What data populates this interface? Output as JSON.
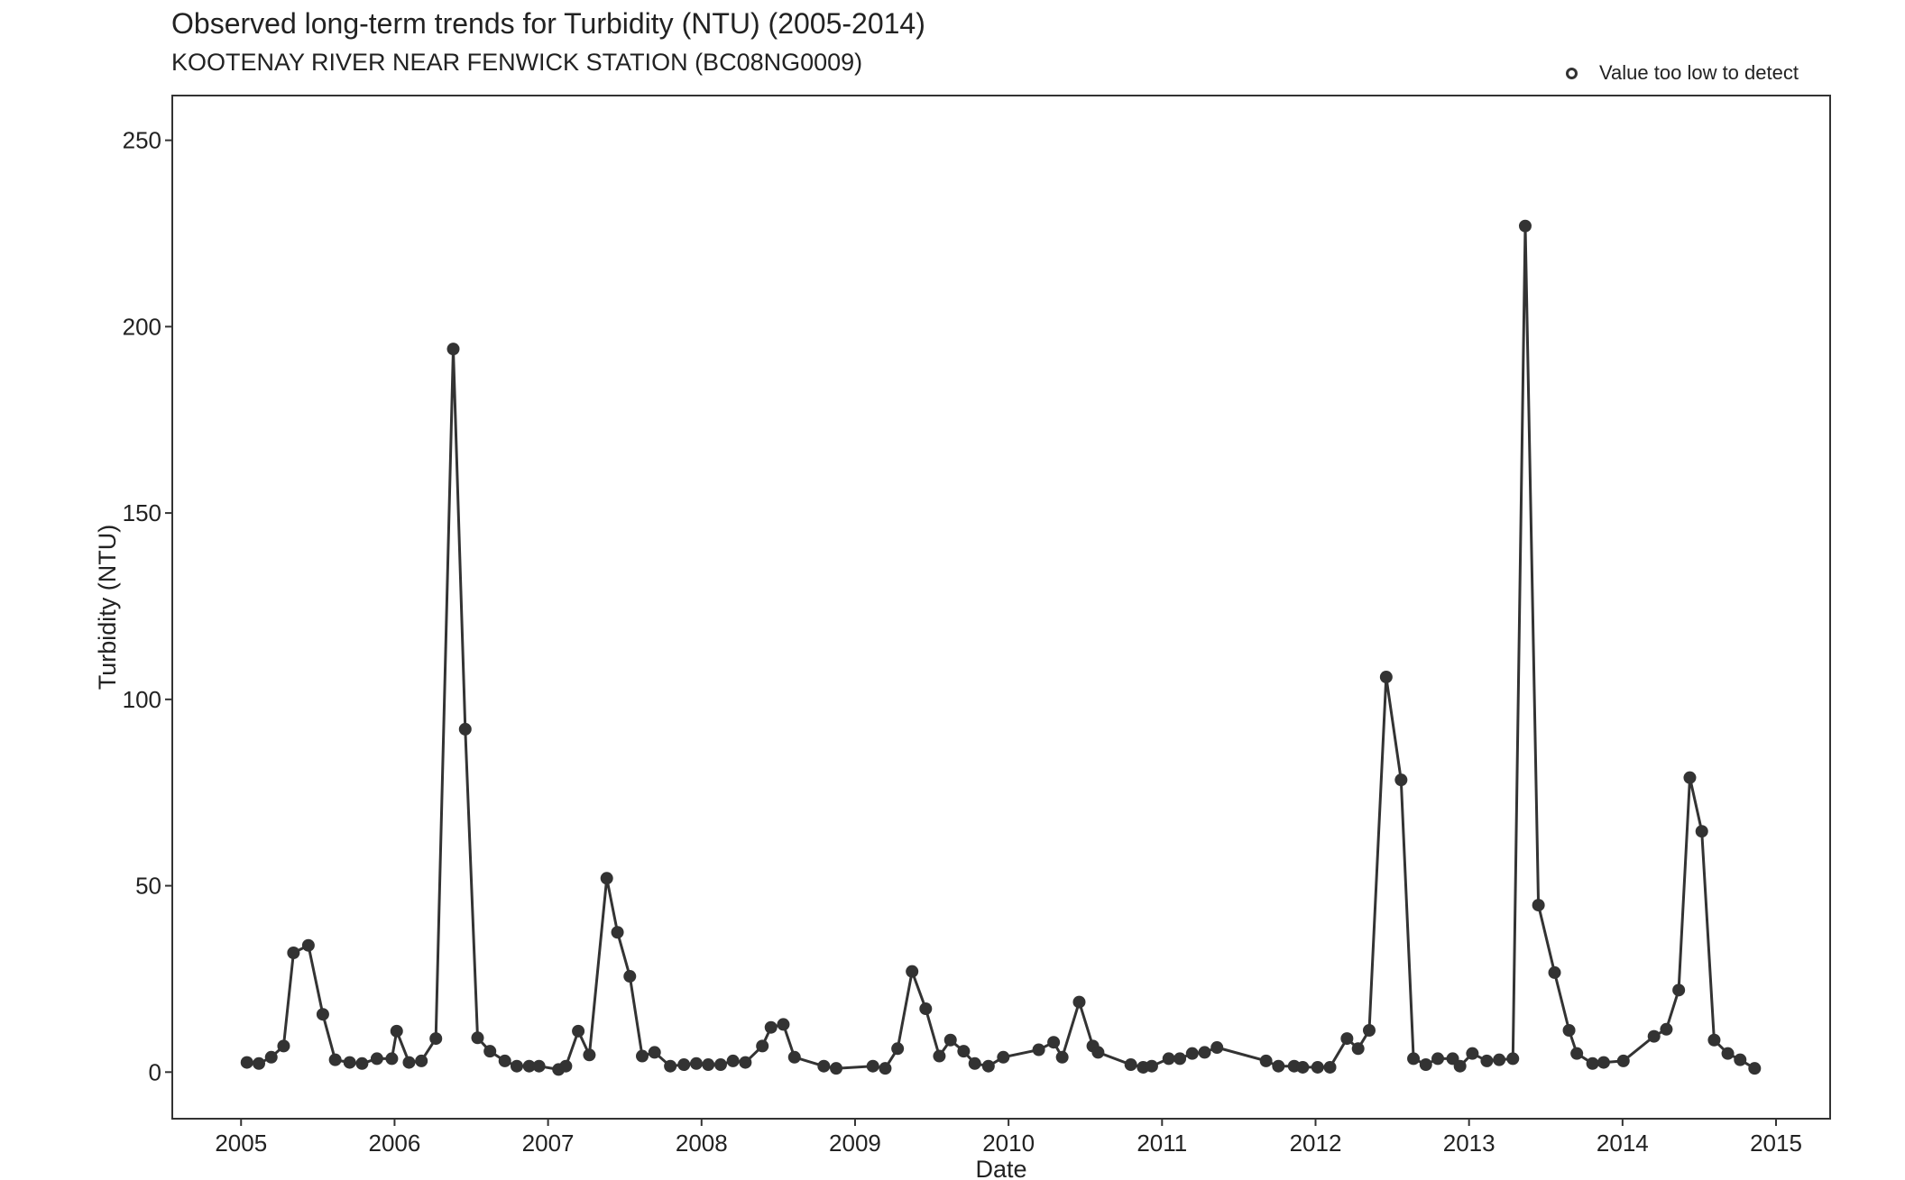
{
  "chart_data": {
    "type": "line",
    "title": "Observed long-term trends for Turbidity (NTU) (2005-2014)",
    "subtitle": "KOOTENAY RIVER NEAR FENWICK STATION (BC08NG0009)",
    "xlabel": "Date",
    "ylabel": "Turbidity (NTU)",
    "xlim": [
      "2004-07-20",
      "2015-05-08"
    ],
    "ylim": [
      -12.5,
      262
    ],
    "x_ticks": [
      "2005",
      "2006",
      "2007",
      "2008",
      "2009",
      "2010",
      "2011",
      "2012",
      "2013",
      "2014",
      "2015"
    ],
    "y_ticks": [
      0,
      50,
      100,
      150,
      200,
      250
    ],
    "grid": false,
    "legend": {
      "position": "top-right",
      "entries": [
        {
          "label": "Value too low to detect",
          "marker": "open-circle"
        }
      ]
    },
    "colors": {
      "line": "#333333",
      "point": "#333333"
    },
    "series": [
      {
        "points": [
          [
            "2005-01-15",
            2.6
          ],
          [
            "2005-02-13",
            2.3
          ],
          [
            "2005-03-12",
            4
          ],
          [
            "2005-04-11",
            7
          ],
          [
            "2005-05-04",
            32
          ],
          [
            "2005-06-09",
            34
          ],
          [
            "2005-07-13",
            15.5
          ],
          [
            "2005-08-12",
            3.3
          ],
          [
            "2005-09-16",
            2.6
          ],
          [
            "2005-10-15",
            2.3
          ],
          [
            "2005-11-20",
            3.6
          ],
          [
            "2005-12-25",
            3.6
          ],
          [
            "2006-01-06",
            11
          ],
          [
            "2006-02-05",
            2.6
          ],
          [
            "2006-03-04",
            3
          ],
          [
            "2006-04-08",
            9
          ],
          [
            "2006-05-19",
            194
          ],
          [
            "2006-06-17",
            92
          ],
          [
            "2006-07-16",
            9.2
          ],
          [
            "2006-08-15",
            5.6
          ],
          [
            "2006-09-20",
            3
          ],
          [
            "2006-10-18",
            1.6
          ],
          [
            "2006-11-17",
            1.6
          ],
          [
            "2006-12-10",
            1.6
          ],
          [
            "2007-01-26",
            0.7
          ],
          [
            "2007-02-13",
            1.6
          ],
          [
            "2007-03-12",
            11
          ],
          [
            "2007-04-08",
            4.6
          ],
          [
            "2007-05-19",
            52
          ],
          [
            "2007-06-14",
            37.5
          ],
          [
            "2007-07-13",
            25.7
          ],
          [
            "2007-08-12",
            4.3
          ],
          [
            "2007-09-11",
            5.3
          ],
          [
            "2007-10-18",
            1.6
          ],
          [
            "2007-11-20",
            2
          ],
          [
            "2007-12-19",
            2.3
          ],
          [
            "2008-01-17",
            2
          ],
          [
            "2008-02-16",
            2
          ],
          [
            "2008-03-15",
            3
          ],
          [
            "2008-04-14",
            2.6
          ],
          [
            "2008-05-24",
            7
          ],
          [
            "2008-06-14",
            12
          ],
          [
            "2008-07-13",
            12.8
          ],
          [
            "2008-08-09",
            4
          ],
          [
            "2008-10-18",
            1.6
          ],
          [
            "2008-11-17",
            1
          ],
          [
            "2009-02-13",
            1.6
          ],
          [
            "2009-03-12",
            1
          ],
          [
            "2009-04-11",
            6.3
          ],
          [
            "2009-05-15",
            27
          ],
          [
            "2009-06-17",
            17
          ],
          [
            "2009-07-19",
            4.3
          ],
          [
            "2009-08-15",
            8.6
          ],
          [
            "2009-09-16",
            5.6
          ],
          [
            "2009-10-12",
            2.3
          ],
          [
            "2009-11-14",
            1.6
          ],
          [
            "2009-12-19",
            4
          ],
          [
            "2010-03-12",
            6
          ],
          [
            "2010-04-17",
            8
          ],
          [
            "2010-05-07",
            4
          ],
          [
            "2010-06-17",
            18.8
          ],
          [
            "2010-07-19",
            7
          ],
          [
            "2010-08-01",
            5.3
          ],
          [
            "2010-10-18",
            2
          ],
          [
            "2010-11-17",
            1.3
          ],
          [
            "2010-12-07",
            1.6
          ],
          [
            "2011-01-17",
            3.6
          ],
          [
            "2011-02-13",
            3.6
          ],
          [
            "2011-03-12",
            5
          ],
          [
            "2011-04-11",
            5.3
          ],
          [
            "2011-05-10",
            6.6
          ],
          [
            "2011-09-05",
            3
          ],
          [
            "2011-10-04",
            1.6
          ],
          [
            "2011-11-11",
            1.6
          ],
          [
            "2011-12-01",
            1.3
          ],
          [
            "2012-01-06",
            1.3
          ],
          [
            "2012-02-05",
            1.3
          ],
          [
            "2012-03-15",
            9
          ],
          [
            "2012-04-11",
            6.3
          ],
          [
            "2012-05-07",
            11.2
          ],
          [
            "2012-06-17",
            106
          ],
          [
            "2012-07-22",
            78.4
          ],
          [
            "2012-08-21",
            3.6
          ],
          [
            "2012-09-20",
            2
          ],
          [
            "2012-10-18",
            3.6
          ],
          [
            "2012-11-23",
            3.6
          ],
          [
            "2012-12-10",
            1.6
          ],
          [
            "2013-01-09",
            5
          ],
          [
            "2013-02-13",
            3
          ],
          [
            "2013-03-12",
            3.3
          ],
          [
            "2013-04-14",
            3.6
          ],
          [
            "2013-05-13",
            227
          ],
          [
            "2013-06-14",
            44.8
          ],
          [
            "2013-07-22",
            26.7
          ],
          [
            "2013-08-26",
            11.2
          ],
          [
            "2013-09-14",
            5
          ],
          [
            "2013-10-21",
            2.3
          ],
          [
            "2013-11-17",
            2.6
          ],
          [
            "2014-01-03",
            3
          ],
          [
            "2014-03-15",
            9.6
          ],
          [
            "2014-04-14",
            11.5
          ],
          [
            "2014-05-13",
            22
          ],
          [
            "2014-06-09",
            79
          ],
          [
            "2014-07-07",
            64.6
          ],
          [
            "2014-08-06",
            8.6
          ],
          [
            "2014-09-08",
            5
          ],
          [
            "2014-10-07",
            3.3
          ],
          [
            "2014-11-11",
            1
          ]
        ]
      }
    ]
  }
}
